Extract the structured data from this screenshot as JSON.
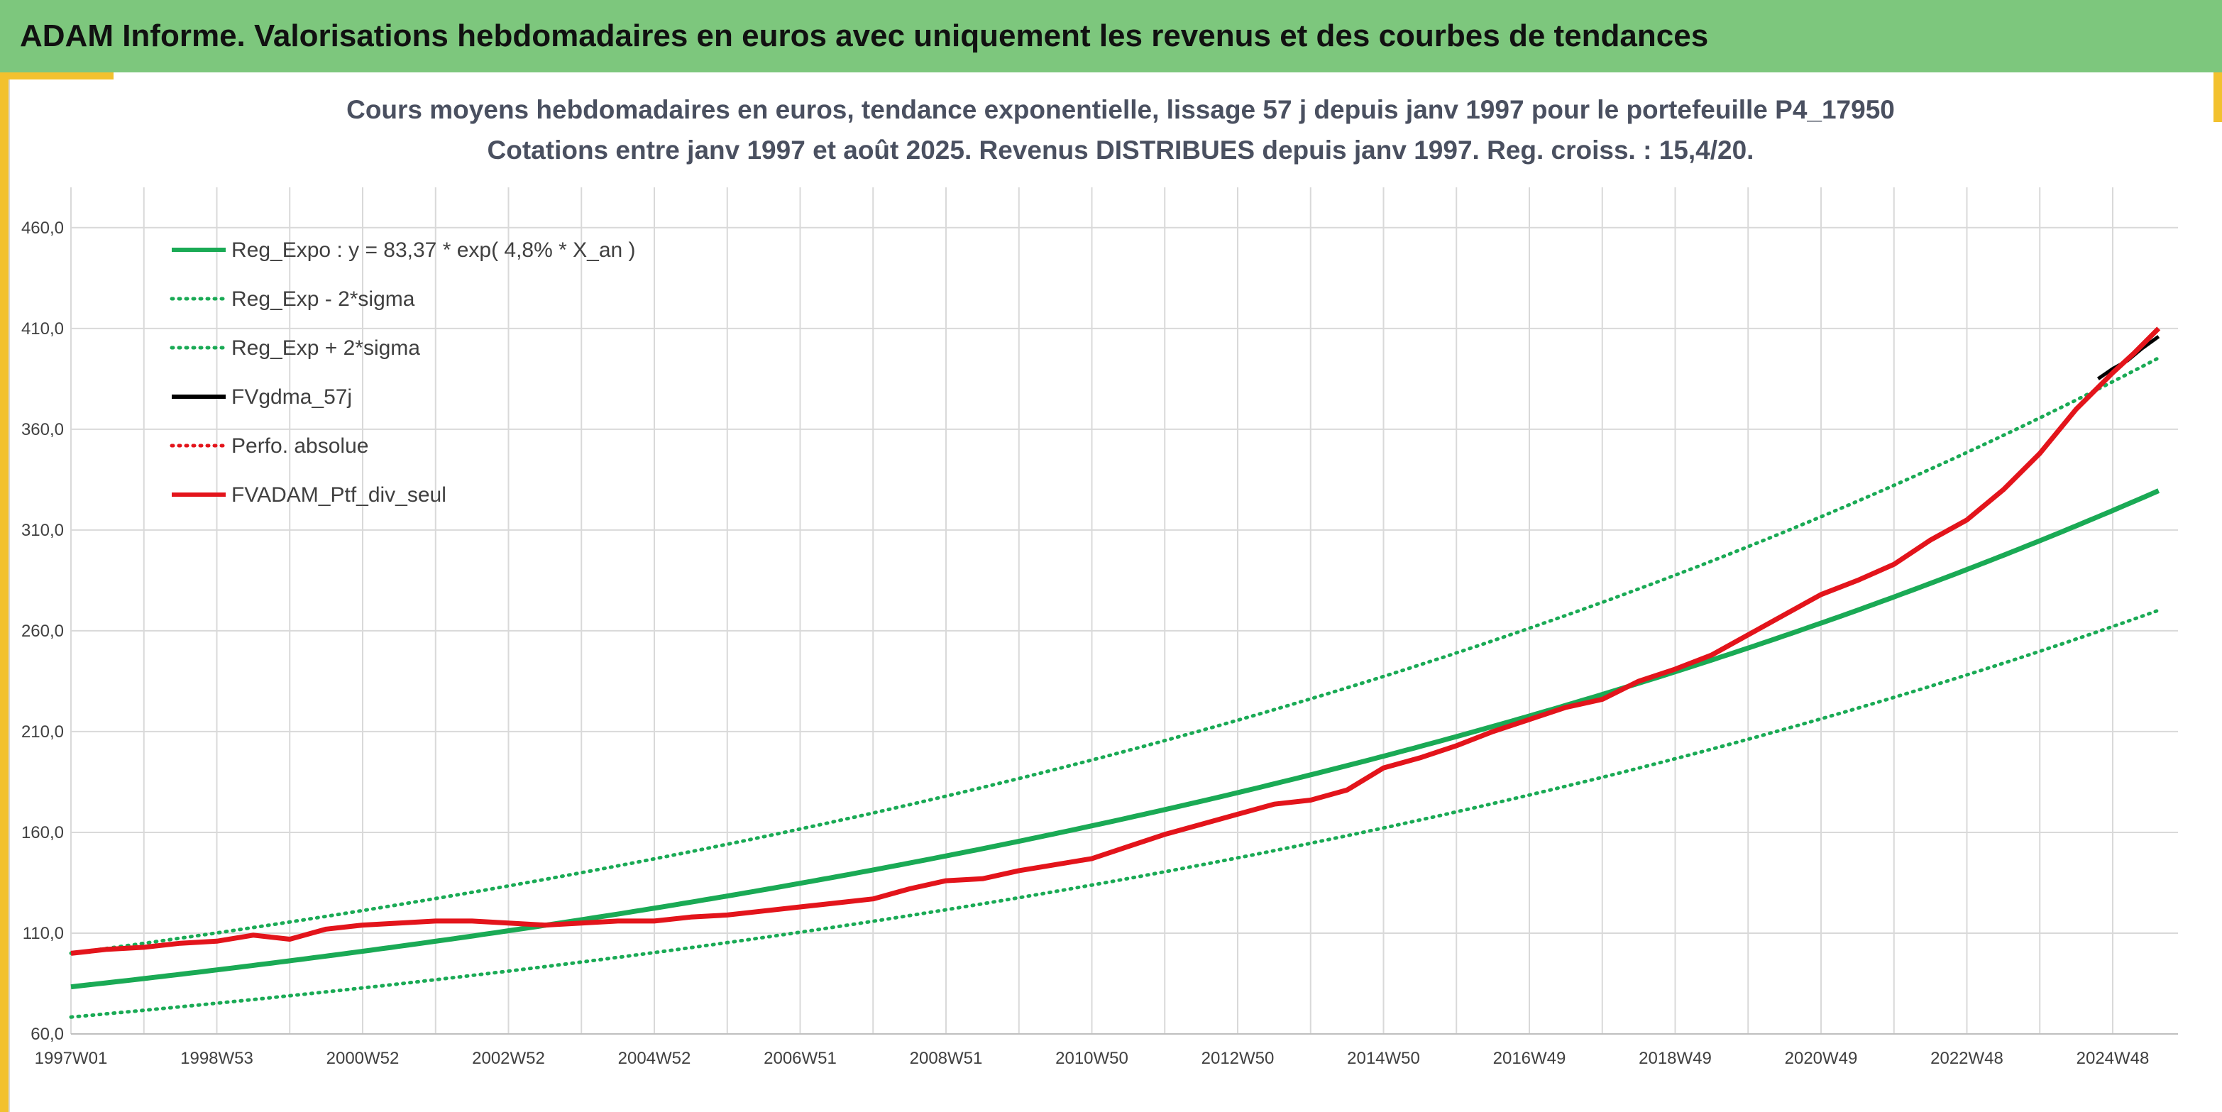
{
  "banner": {
    "title": "ADAM Informe. Valorisations hebdomadaires en euros avec uniquement les revenus et des courbes de tendances"
  },
  "colors": {
    "banner": "#7dc77d",
    "accent_gold": "#f2c12e",
    "regression": "#1aaa55",
    "portfolio": "#e3141b",
    "fvgdma": "#000000",
    "grid": "#d9d9d9"
  },
  "chart_data": {
    "type": "line",
    "title_line1": "Cours moyens hebdomadaires en euros, tendance exponentielle, lissage 57 j depuis janv 1997 pour le portefeuille P4_17950",
    "title_line2": "Cotations entre janv 1997 et août 2025. Revenus DISTRIBUES depuis janv 1997. Reg. croiss. : 15,4/20.",
    "x_range": [
      1997.0,
      2025.63
    ],
    "x_tick_labels": [
      "1997W01",
      "1998W53",
      "2000W52",
      "2002W52",
      "2004W52",
      "2006W51",
      "2008W51",
      "2010W50",
      "2012W50",
      "2014W50",
      "2016W49",
      "2018W49",
      "2020W49",
      "2022W48",
      "2024W48"
    ],
    "x_tick_years": [
      1997.0,
      1999.0,
      2001.0,
      2003.0,
      2005.0,
      2007.0,
      2009.0,
      2011.0,
      2013.0,
      2015.0,
      2017.0,
      2019.0,
      2021.0,
      2023.0,
      2025.0
    ],
    "ylim": [
      60,
      480
    ],
    "y_ticks": [
      60,
      110,
      160,
      210,
      260,
      310,
      360,
      410,
      460
    ],
    "y_tick_labels": [
      "60,0",
      "110,0",
      "160,0",
      "210,0",
      "260,0",
      "310,0",
      "360,0",
      "410,0",
      "460,0"
    ],
    "grid": true,
    "legend_position": "top-left",
    "legend": [
      {
        "label": "Reg_Expo : y = 83,37 * exp( 4,8% *  X_an )",
        "color": "#1aaa55",
        "style": "solid"
      },
      {
        "label": "Reg_Exp - 2*sigma",
        "color": "#1aaa55",
        "style": "dotted"
      },
      {
        "label": "Reg_Exp + 2*sigma",
        "color": "#1aaa55",
        "style": "dotted"
      },
      {
        "label": "FVgdma_57j",
        "color": "#000000",
        "style": "solid"
      },
      {
        "label": "Perfo. absolue",
        "color": "#e3141b",
        "style": "dotted"
      },
      {
        "label": "FVADAM_Ptf_div_seul",
        "color": "#e3141b",
        "style": "solid"
      }
    ],
    "regression": {
      "a": 83.37,
      "rate": 0.048,
      "lower_factor": 0.82,
      "upper_factor": 1.2
    },
    "series": [
      {
        "name": "FVADAM_Ptf_div_seul",
        "x": [
          1997.0,
          1997.5,
          1998.0,
          1998.5,
          1999.0,
          1999.5,
          2000.0,
          2000.5,
          2001.0,
          2001.5,
          2002.0,
          2002.5,
          2003.0,
          2003.5,
          2004.0,
          2004.5,
          2005.0,
          2005.5,
          2006.0,
          2006.5,
          2007.0,
          2007.5,
          2008.0,
          2008.5,
          2009.0,
          2009.5,
          2010.0,
          2010.5,
          2011.0,
          2011.5,
          2012.0,
          2012.5,
          2013.0,
          2013.5,
          2014.0,
          2014.5,
          2015.0,
          2015.5,
          2016.0,
          2016.5,
          2017.0,
          2017.5,
          2018.0,
          2018.5,
          2019.0,
          2019.5,
          2020.0,
          2020.5,
          2021.0,
          2021.5,
          2022.0,
          2022.5,
          2023.0,
          2023.5,
          2024.0,
          2024.5,
          2025.0,
          2025.3,
          2025.63
        ],
        "y": [
          100,
          102,
          103,
          105,
          106,
          109,
          107,
          112,
          114,
          115,
          116,
          116,
          115,
          114,
          115,
          116,
          116,
          118,
          119,
          121,
          123,
          125,
          127,
          132,
          136,
          137,
          141,
          144,
          147,
          153,
          159,
          164,
          169,
          174,
          176,
          181,
          192,
          197,
          203,
          210,
          216,
          222,
          226,
          235,
          241,
          248,
          258,
          268,
          278,
          285,
          293,
          305,
          315,
          330,
          348,
          370,
          388,
          398,
          410
        ]
      },
      {
        "name": "FVgdma_57j",
        "x": [
          2024.8,
          2025.0,
          2025.2,
          2025.4,
          2025.63
        ],
        "y": [
          385,
          390,
          394,
          400,
          406
        ]
      }
    ]
  }
}
